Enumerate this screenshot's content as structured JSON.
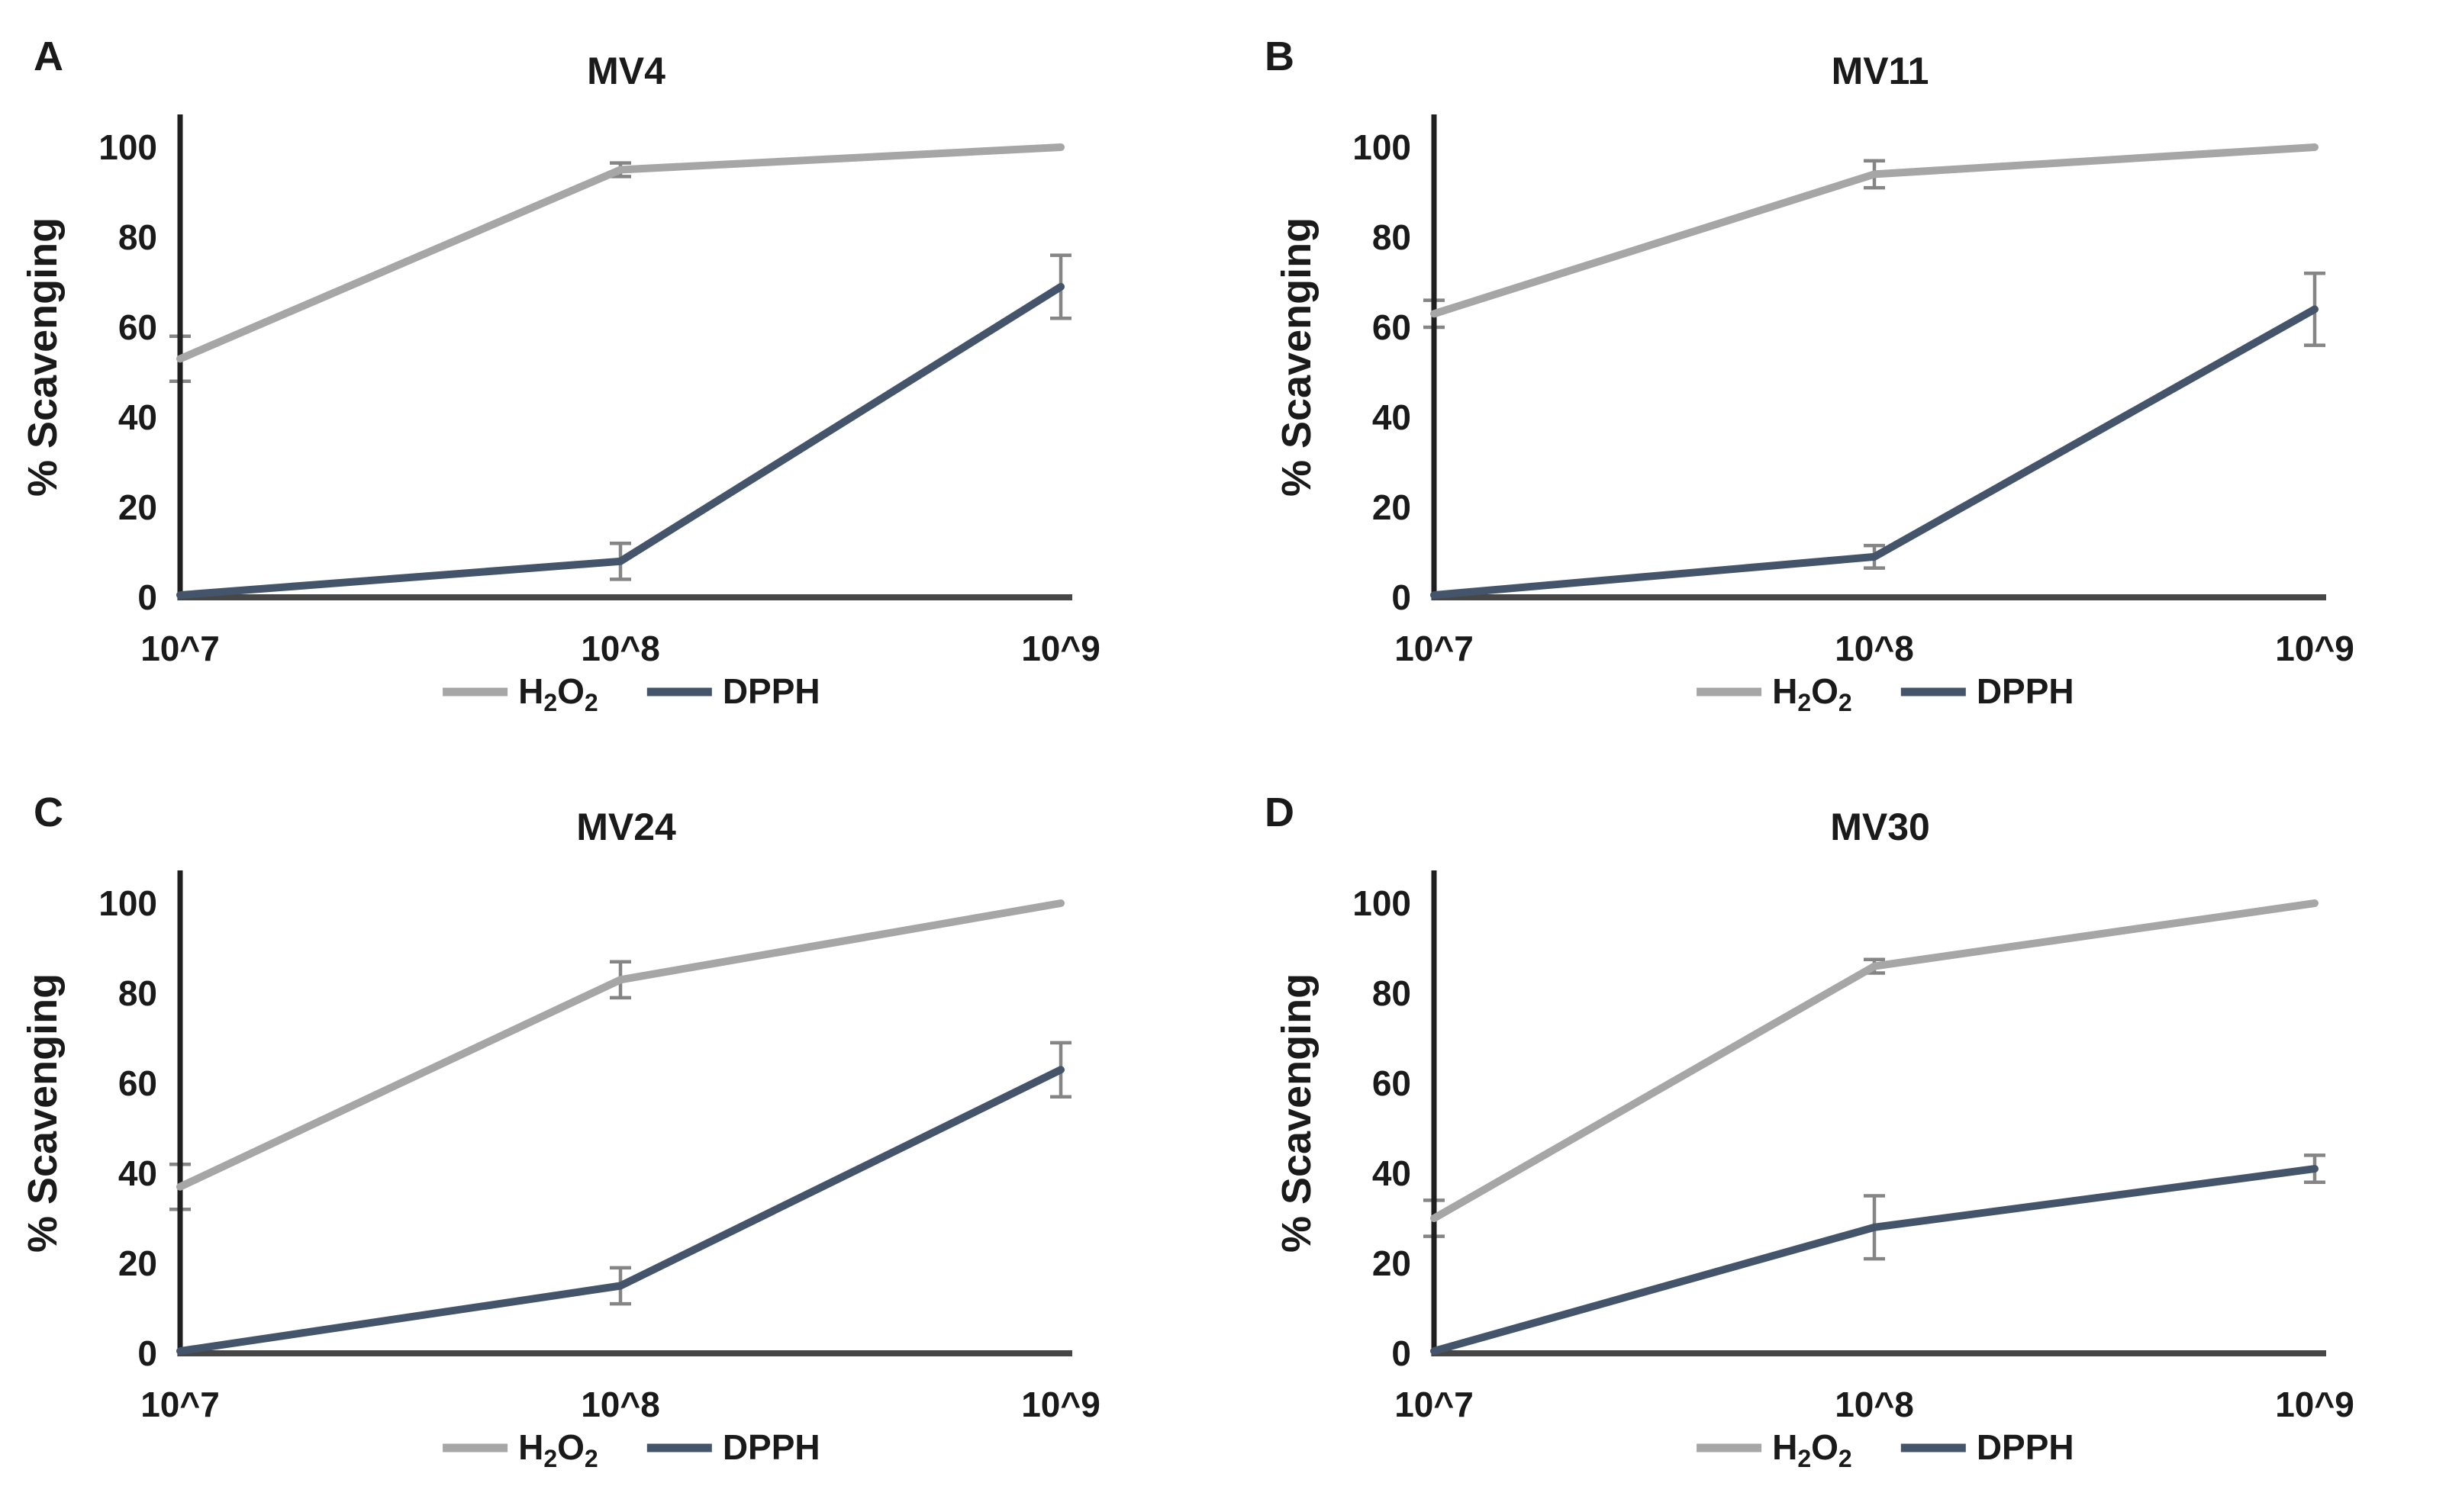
{
  "colors": {
    "h2o2": "#a6a6a6",
    "dpph": "#44546a",
    "error_bar": "#858585",
    "y_axis": "#1f1f1f",
    "x_axis": "#474747",
    "text": "#1a1a1a",
    "background": "#ffffff"
  },
  "ylabel": "% Scavenging",
  "categories": [
    "10^7",
    "10^8",
    "10^9"
  ],
  "yticks": [
    0,
    20,
    40,
    60,
    80,
    100
  ],
  "ylim": [
    0,
    110
  ],
  "legend": {
    "position": "bottom",
    "items": [
      {
        "label": "H₂O₂",
        "parts": [
          [
            "H",
            false
          ],
          [
            "2",
            true
          ],
          [
            "O",
            false
          ],
          [
            "2",
            true
          ]
        ],
        "color_key": "h2o2"
      },
      {
        "label": "DPPH",
        "parts": [
          [
            "DPPH",
            false
          ]
        ],
        "color_key": "dpph"
      }
    ]
  },
  "chart_data": [
    {
      "type": "line",
      "panel_label": "A",
      "title": "MV4",
      "xlabel": "",
      "ylabel": "% Scavenging",
      "categories": [
        "10^7",
        "10^8",
        "10^9"
      ],
      "ylim": [
        0,
        110
      ],
      "grid": false,
      "legend_position": "bottom",
      "series": [
        {
          "name": "H₂O₂",
          "color_key": "h2o2",
          "values": [
            53,
            95,
            100
          ],
          "errors": [
            5,
            1.5,
            0
          ]
        },
        {
          "name": "DPPH",
          "color_key": "dpph",
          "values": [
            0.5,
            8,
            69
          ],
          "errors": [
            0,
            4,
            7
          ]
        }
      ]
    },
    {
      "type": "line",
      "panel_label": "B",
      "title": "MV11",
      "xlabel": "",
      "ylabel": "% Scavenging",
      "categories": [
        "10^7",
        "10^8",
        "10^9"
      ],
      "ylim": [
        0,
        110
      ],
      "grid": false,
      "legend_position": "bottom",
      "series": [
        {
          "name": "H₂O₂",
          "color_key": "h2o2",
          "values": [
            63,
            94,
            100
          ],
          "errors": [
            3,
            3,
            0
          ]
        },
        {
          "name": "DPPH",
          "color_key": "dpph",
          "values": [
            0.5,
            9,
            64
          ],
          "errors": [
            0,
            2.5,
            8
          ]
        }
      ]
    },
    {
      "type": "line",
      "panel_label": "C",
      "title": "MV24",
      "xlabel": "",
      "ylabel": "% Scavenging",
      "categories": [
        "10^7",
        "10^8",
        "10^9"
      ],
      "ylim": [
        0,
        110
      ],
      "grid": false,
      "legend_position": "bottom",
      "series": [
        {
          "name": "H₂O₂",
          "color_key": "h2o2",
          "values": [
            37,
            83,
            100
          ],
          "errors": [
            5,
            4,
            0
          ]
        },
        {
          "name": "DPPH",
          "color_key": "dpph",
          "values": [
            0.5,
            15,
            63
          ],
          "errors": [
            0,
            4,
            6
          ]
        }
      ]
    },
    {
      "type": "line",
      "panel_label": "D",
      "title": "MV30",
      "xlabel": "",
      "ylabel": "% Scavenging",
      "categories": [
        "10^7",
        "10^8",
        "10^9"
      ],
      "ylim": [
        0,
        110
      ],
      "grid": false,
      "legend_position": "bottom",
      "series": [
        {
          "name": "H₂O₂",
          "color_key": "h2o2",
          "values": [
            30,
            86,
            100
          ],
          "errors": [
            4,
            1.5,
            0
          ]
        },
        {
          "name": "DPPH",
          "color_key": "dpph",
          "values": [
            0.5,
            28,
            41
          ],
          "errors": [
            0,
            7,
            3
          ]
        }
      ]
    }
  ]
}
